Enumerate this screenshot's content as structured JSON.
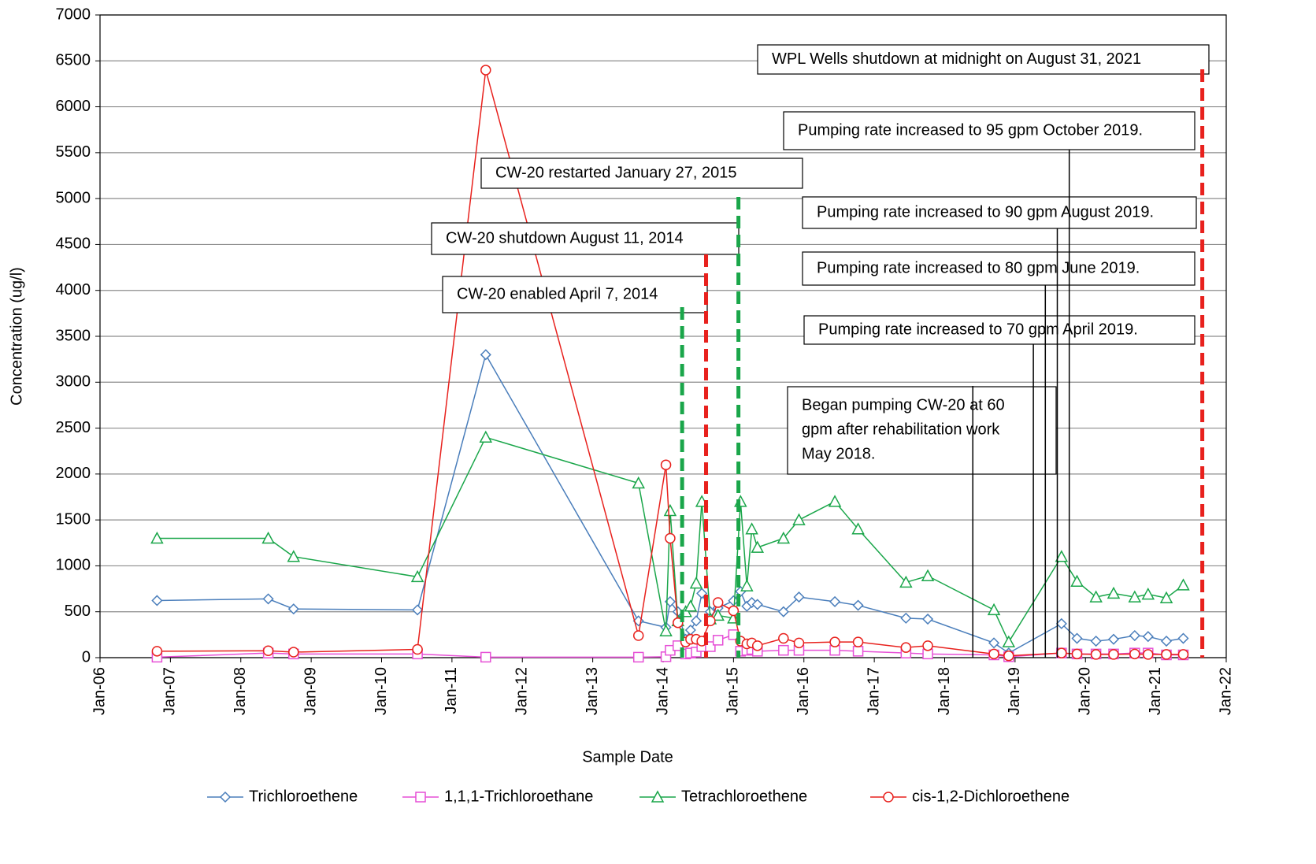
{
  "chart_data": {
    "type": "line",
    "x_label": "Sample Date",
    "y_label": "Concentration (ug/l)",
    "xlim": [
      2006,
      2022
    ],
    "xticks": [
      {
        "value": 2006,
        "label": "Jan-06"
      },
      {
        "value": 2007,
        "label": "Jan-07"
      },
      {
        "value": 2008,
        "label": "Jan-08"
      },
      {
        "value": 2009,
        "label": "Jan-09"
      },
      {
        "value": 2010,
        "label": "Jan-10"
      },
      {
        "value": 2011,
        "label": "Jan-11"
      },
      {
        "value": 2012,
        "label": "Jan-12"
      },
      {
        "value": 2013,
        "label": "Jan-13"
      },
      {
        "value": 2014,
        "label": "Jan-14"
      },
      {
        "value": 2015,
        "label": "Jan-15"
      },
      {
        "value": 2016,
        "label": "Jan-16"
      },
      {
        "value": 2017,
        "label": "Jan-17"
      },
      {
        "value": 2018,
        "label": "Jan-18"
      },
      {
        "value": 2019,
        "label": "Jan-19"
      },
      {
        "value": 2020,
        "label": "Jan-20"
      },
      {
        "value": 2021,
        "label": "Jan-21"
      },
      {
        "value": 2022,
        "label": "Jan-22"
      }
    ],
    "ylim": [
      0,
      7000
    ],
    "yticks": [
      0,
      500,
      1000,
      1500,
      2000,
      2500,
      3000,
      3500,
      4000,
      4500,
      5000,
      5500,
      6000,
      6500,
      7000
    ],
    "grid": true,
    "legend": "bottom",
    "x": [
      2006.81,
      2008.39,
      2008.75,
      2010.51,
      2011.48,
      2013.65,
      2014.04,
      2014.1,
      2014.21,
      2014.32,
      2014.39,
      2014.47,
      2014.55,
      2014.67,
      2014.78,
      2015.0,
      2015.1,
      2015.19,
      2015.26,
      2015.34,
      2015.71,
      2015.93,
      2016.44,
      2016.77,
      2017.45,
      2017.76,
      2018.7,
      2018.91,
      2019.66,
      2019.88,
      2020.15,
      2020.4,
      2020.7,
      2020.89,
      2021.15,
      2021.39
    ],
    "series": [
      {
        "name": "Trichloroethene",
        "color": "#4a7ebb",
        "marker": "diamond",
        "values": [
          622,
          640,
          530,
          520,
          3300,
          400,
          330,
          610,
          500,
          200,
          300,
          400,
          700,
          500,
          540,
          620,
          720,
          560,
          600,
          580,
          500,
          660,
          610,
          570,
          430,
          420,
          160,
          50,
          370,
          210,
          180,
          200,
          240,
          230,
          180,
          210
        ]
      },
      {
        "name": "1,1,1-Trichloroethane",
        "color": "#e64fd6",
        "marker": "square",
        "values": [
          5,
          50,
          40,
          40,
          5,
          5,
          10,
          80,
          130,
          40,
          50,
          60,
          120,
          120,
          190,
          250,
          70,
          80,
          90,
          70,
          80,
          80,
          80,
          70,
          50,
          40,
          30,
          10,
          50,
          40,
          40,
          40,
          50,
          50,
          30,
          30
        ]
      },
      {
        "name": "Tetrachloroethene",
        "color": "#1aa64a",
        "marker": "triangle",
        "values": [
          1300,
          1300,
          1100,
          880,
          2400,
          1900,
          290,
          1600,
          400,
          500,
          560,
          810,
          1700,
          420,
          460,
          430,
          1700,
          780,
          1400,
          1200,
          1300,
          1500,
          1700,
          1400,
          820,
          890,
          520,
          170,
          1100,
          830,
          660,
          700,
          660,
          690,
          650,
          790
        ]
      },
      {
        "name": "cis-1,2-Dichloroethene",
        "color": "#e8211d",
        "marker": "circle",
        "values": [
          70,
          75,
          60,
          90,
          6400,
          240,
          2100,
          1300,
          380,
          170,
          200,
          200,
          180,
          400,
          600,
          510,
          180,
          150,
          160,
          130,
          210,
          160,
          170,
          170,
          110,
          130,
          40,
          20,
          50,
          40,
          35,
          35,
          40,
          35,
          35,
          35
        ]
      }
    ],
    "annotations": [
      {
        "text": [
          "CW-20 enabled April 7, 2014"
        ],
        "x": 2014.27,
        "color": "#1aa64a",
        "dashed": true
      },
      {
        "text": [
          "CW-20 shutdown August 11, 2014"
        ],
        "x": 2014.61,
        "color": "#e8211d",
        "dashed": true
      },
      {
        "text": [
          "CW-20 restarted January 27, 2015"
        ],
        "x": 2015.07,
        "color": "#1aa64a",
        "dashed": true
      },
      {
        "text": [
          "Began pumping CW-20 at 60",
          "gpm after rehabilitation work",
          "May 2018."
        ],
        "x": 2018.4,
        "color": "#000000",
        "dashed": false
      },
      {
        "text": [
          "Pumping rate increased to 70 gpm April 2019."
        ],
        "x": 2019.26,
        "color": "#000000",
        "dashed": false
      },
      {
        "text": [
          "Pumping rate increased to 80 gpm June 2019."
        ],
        "x": 2019.43,
        "color": "#000000",
        "dashed": false
      },
      {
        "text": [
          "Pumping rate increased to 90 gpm August 2019."
        ],
        "x": 2019.6,
        "color": "#000000",
        "dashed": false
      },
      {
        "text": [
          "Pumping rate increased to 95 gpm October 2019."
        ],
        "x": 2019.77,
        "color": "#000000",
        "dashed": false
      },
      {
        "text": [
          "WPL Wells shutdown at midnight on August 31, 2021"
        ],
        "x": 2021.66,
        "color": "#e8211d",
        "dashed": true
      }
    ]
  }
}
